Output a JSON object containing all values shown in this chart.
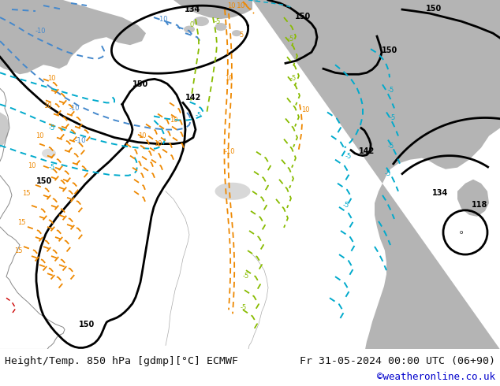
{
  "title_left": "Height/Temp. 850 hPa [gdmp][°C] ECMWF",
  "title_right": "Fr 31-05-2024 00:00 UTC (06+90)",
  "credit": "©weatheronline.co.uk",
  "bg_green": "#c8e88c",
  "bg_grey": "#b4b4b4",
  "bg_white": "#ffffff",
  "black": "#000000",
  "cyan_blue": "#00aacc",
  "blue": "#4488cc",
  "green_line": "#88bb00",
  "orange_line": "#ee8800",
  "red_line": "#cc0000",
  "text_dark": "#111111",
  "credit_color": "#0000cc",
  "fig_width": 6.34,
  "fig_height": 4.9,
  "dpi": 100
}
